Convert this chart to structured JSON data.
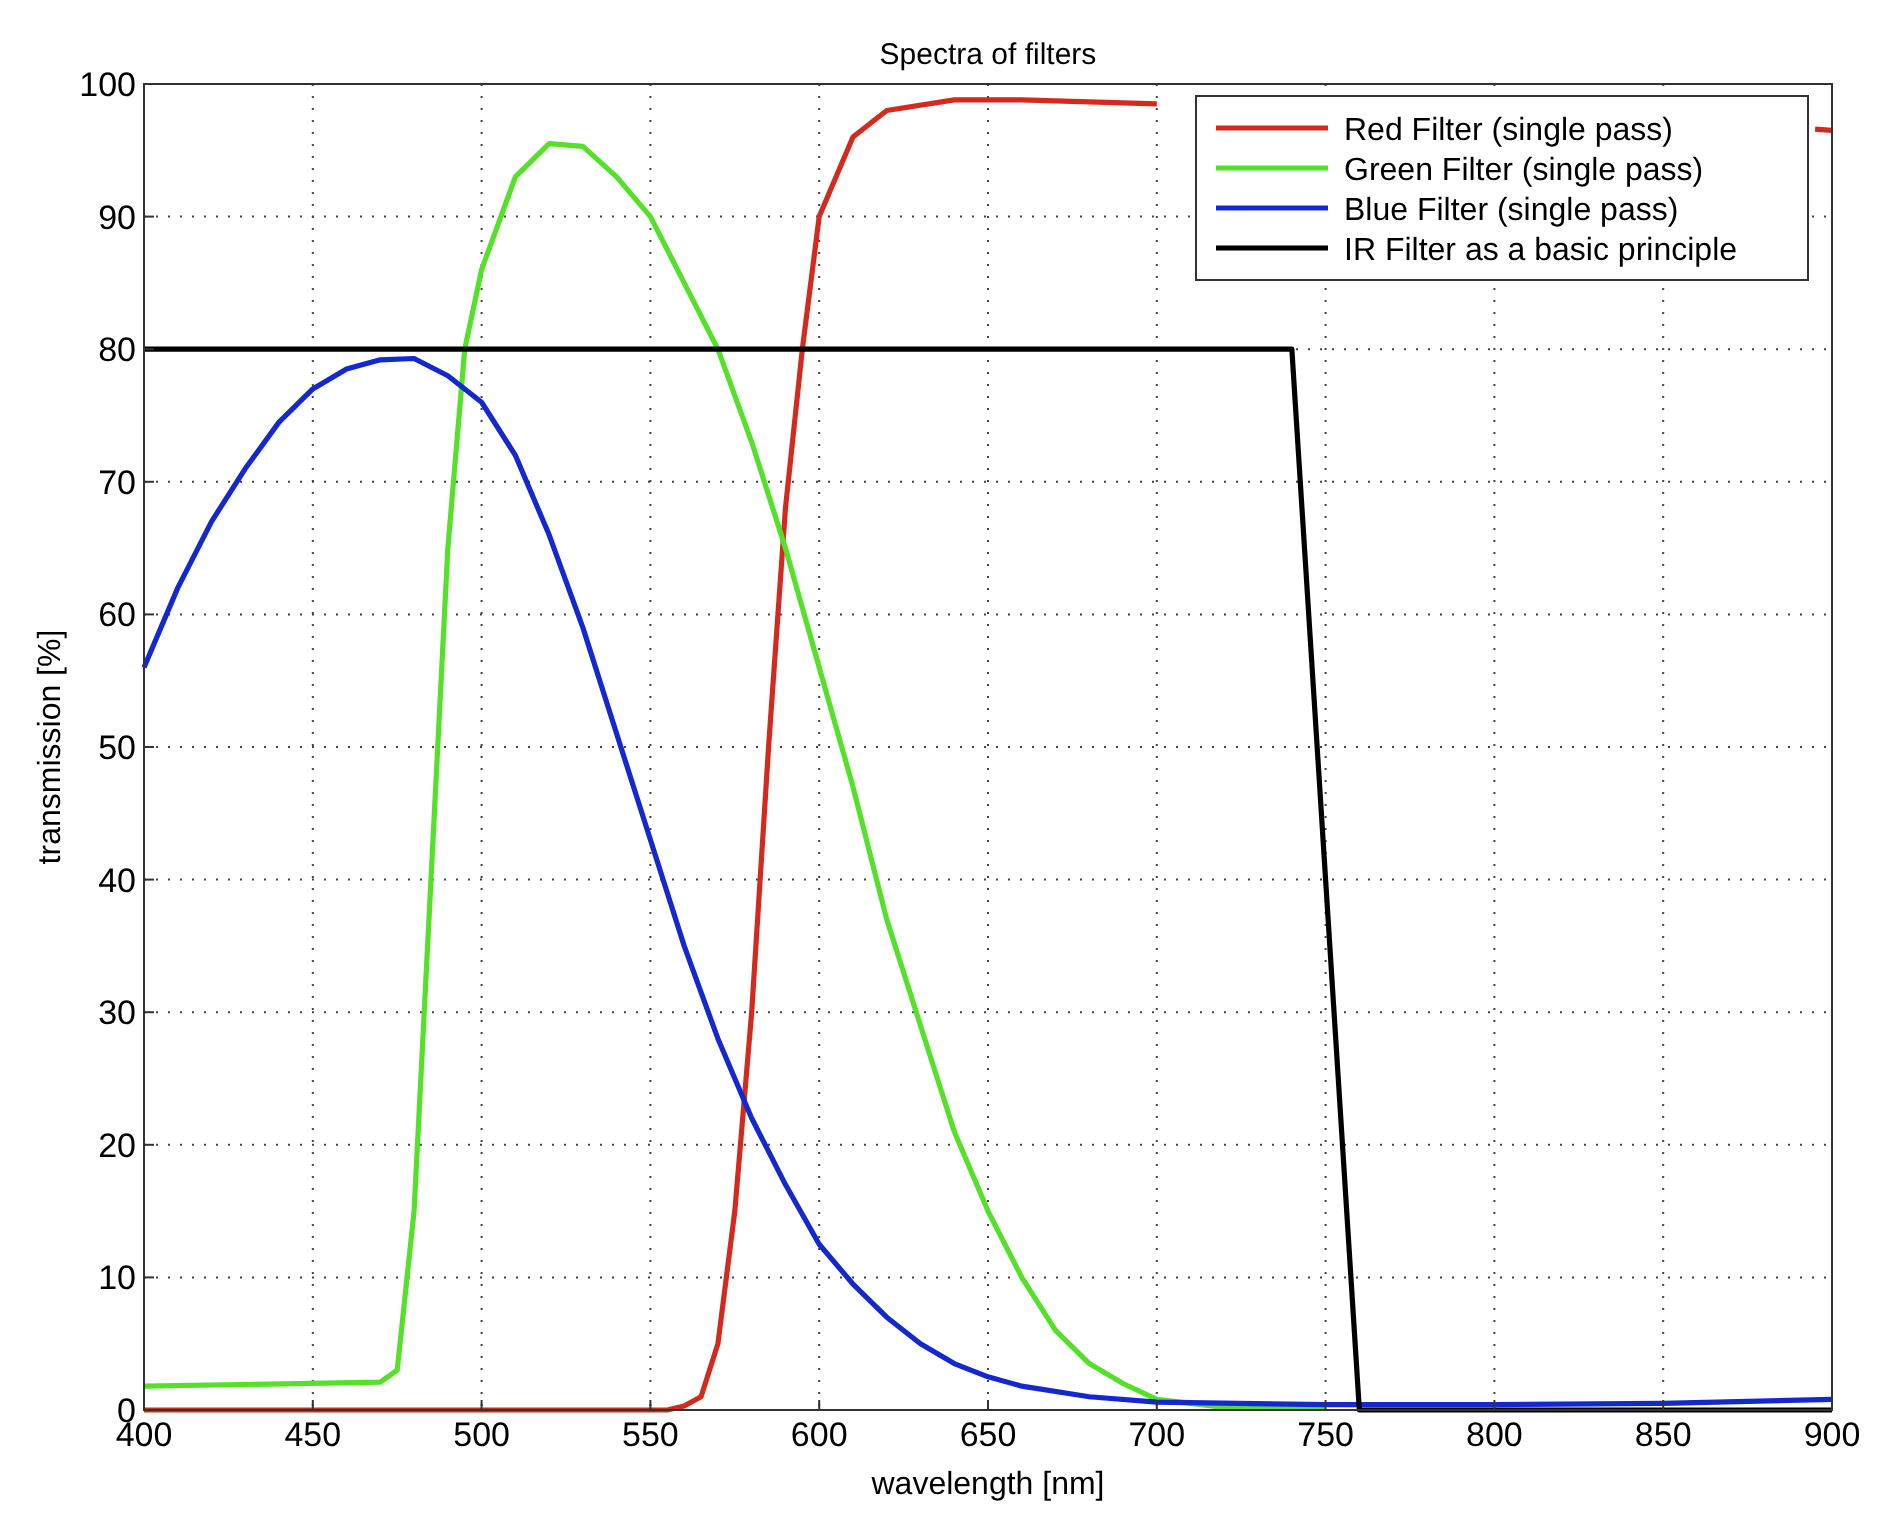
{
  "chart_data": {
    "type": "line",
    "title": "Spectra of filters",
    "xlabel": "wavelength [nm]",
    "ylabel": "transmission [%]",
    "xlim": [
      400,
      900
    ],
    "xticks": [
      400,
      450,
      500,
      550,
      600,
      650,
      700,
      750,
      800,
      850,
      900
    ],
    "ylim": [
      0,
      100
    ],
    "yticks": [
      0,
      10,
      20,
      30,
      40,
      50,
      60,
      70,
      80,
      90,
      100
    ],
    "grid": true,
    "legend": "top right",
    "line_style": "solid",
    "series": [
      {
        "name": "Red Filter (single pass)",
        "color": "#d42a1e",
        "x": [
          400,
          555,
          560,
          565,
          570,
          575,
          580,
          585,
          590,
          595,
          600,
          610,
          620,
          640,
          660,
          700,
          800,
          895,
          900
        ],
        "values": [
          0,
          0,
          0.3,
          1,
          5,
          15,
          30,
          50,
          68,
          80,
          90,
          96,
          98,
          98.8,
          98.8,
          98.5,
          null,
          96.6,
          96.5
        ]
      },
      {
        "name": "Green Filter (single pass)",
        "color": "#55e02a",
        "x": [
          400,
          470,
          475,
          480,
          485,
          490,
          495,
          500,
          510,
          520,
          530,
          540,
          550,
          560,
          570,
          580,
          590,
          600,
          610,
          620,
          630,
          640,
          650,
          660,
          670,
          680,
          690,
          700,
          720,
          750
        ],
        "values": [
          1.8,
          2.1,
          3,
          15,
          40,
          65,
          80,
          86,
          93,
          95.5,
          95.3,
          93,
          90,
          85,
          80,
          73,
          65,
          56,
          47,
          37,
          29,
          21,
          15,
          10,
          6,
          3.5,
          2,
          0.8,
          0.2,
          0.2
        ]
      },
      {
        "name": "Blue Filter (single pass)",
        "color": "#1428d0",
        "x": [
          400,
          410,
          420,
          430,
          440,
          450,
          460,
          470,
          480,
          490,
          500,
          510,
          520,
          530,
          540,
          550,
          560,
          570,
          580,
          590,
          600,
          610,
          620,
          630,
          640,
          650,
          660,
          680,
          700,
          750,
          800,
          850,
          900
        ],
        "values": [
          56,
          62,
          67,
          71,
          74.5,
          77,
          78.5,
          79.2,
          79.3,
          78,
          76,
          72,
          66,
          59,
          51,
          43,
          35,
          28,
          22,
          17,
          12.5,
          9.5,
          7,
          5,
          3.5,
          2.5,
          1.8,
          1,
          0.6,
          0.4,
          0.4,
          0.5,
          0.8
        ]
      },
      {
        "name": "IR Filter as a basic principle",
        "color": "#000000",
        "x": [
          400,
          740,
          760,
          900
        ],
        "values": [
          80,
          80,
          0,
          0
        ]
      }
    ]
  }
}
